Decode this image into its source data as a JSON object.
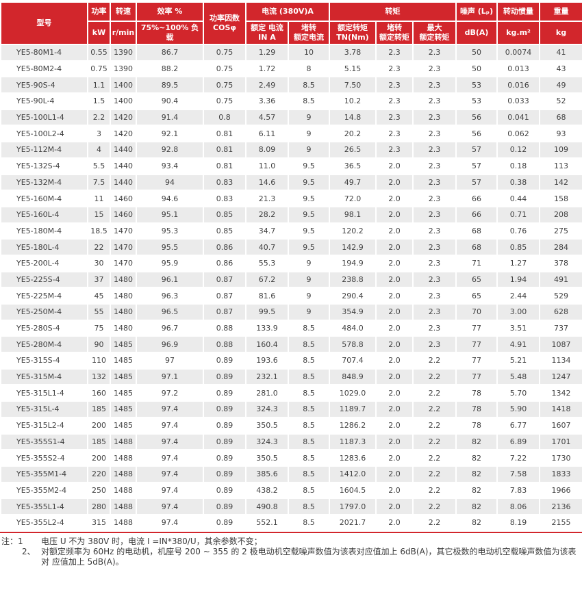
{
  "colors": {
    "header_red": "#d2262c",
    "row_gray": "#ebebeb",
    "text_dark": "#404040"
  },
  "table": {
    "header": {
      "model": "型号",
      "power": "功率",
      "power_unit": "kW",
      "speed": "转速",
      "speed_unit": "r/min",
      "efficiency": "效率 %",
      "efficiency_unit": "75%~100% 负载",
      "power_factor": "功率因数\nCOSφ",
      "current_group": "电流 (380V)A",
      "rated_current": "额定 电流\nIN A",
      "locked_current": "堵转\n额定电流",
      "torque_group": "转矩",
      "rated_torque": "额定转矩\nTN(Nm)",
      "locked_torque": "堵转\n额定转矩",
      "max_torque": "最大\n额定转矩",
      "noise": "噪声 (Lₚ)",
      "noise_unit": "dB(A)",
      "inertia": "转动惯量",
      "inertia_unit": "kg.m²",
      "weight": "重量",
      "weight_unit": "kg"
    },
    "columns": [
      "model",
      "power_kw",
      "speed_rpm",
      "efficiency_pct",
      "power_factor",
      "rated_current_a",
      "locked_rotor_current",
      "rated_torque_nm",
      "locked_rotor_torque",
      "max_torque",
      "noise_dba",
      "inertia_kgm2",
      "weight_kg"
    ],
    "rows": [
      [
        "YE5-80M1-4",
        "0.55",
        "1390",
        "86.7",
        "0.75",
        "1.29",
        "10",
        "3.78",
        "2.3",
        "2.3",
        "50",
        "0.0074",
        "41"
      ],
      [
        "YE5-80M2-4",
        "0.75",
        "1390",
        "88.2",
        "0.75",
        "1.72",
        "8",
        "5.15",
        "2.3",
        "2.3",
        "50",
        "0.013",
        "43"
      ],
      [
        "YE5-90S-4",
        "1.1",
        "1400",
        "89.5",
        "0.75",
        "2.49",
        "8.5",
        "7.50",
        "2.3",
        "2.3",
        "53",
        "0.016",
        "49"
      ],
      [
        "YE5-90L-4",
        "1.5",
        "1400",
        "90.4",
        "0.75",
        "3.36",
        "8.5",
        "10.2",
        "2.3",
        "2.3",
        "53",
        "0.033",
        "52"
      ],
      [
        "YE5-100L1-4",
        "2.2",
        "1420",
        "91.4",
        "0.8",
        "4.57",
        "9",
        "14.8",
        "2.3",
        "2.3",
        "56",
        "0.041",
        "68"
      ],
      [
        "YE5-100L2-4",
        "3",
        "1420",
        "92.1",
        "0.81",
        "6.11",
        "9",
        "20.2",
        "2.3",
        "2.3",
        "56",
        "0.062",
        "93"
      ],
      [
        "YE5-112M-4",
        "4",
        "1440",
        "92.8",
        "0.81",
        "8.09",
        "9",
        "26.5",
        "2.3",
        "2.3",
        "57",
        "0.12",
        "109"
      ],
      [
        "YE5-132S-4",
        "5.5",
        "1440",
        "93.4",
        "0.81",
        "11.0",
        "9.5",
        "36.5",
        "2.0",
        "2.3",
        "57",
        "0.18",
        "113"
      ],
      [
        "YE5-132M-4",
        "7.5",
        "1440",
        "94",
        "0.83",
        "14.6",
        "9.5",
        "49.7",
        "2.0",
        "2.3",
        "57",
        "0.38",
        "142"
      ],
      [
        "YE5-160M-4",
        "11",
        "1460",
        "94.6",
        "0.83",
        "21.3",
        "9.5",
        "72.0",
        "2.0",
        "2.3",
        "66",
        "0.44",
        "158"
      ],
      [
        "YE5-160L-4",
        "15",
        "1460",
        "95.1",
        "0.85",
        "28.2",
        "9.5",
        "98.1",
        "2.0",
        "2.3",
        "66",
        "0.71",
        "208"
      ],
      [
        "YE5-180M-4",
        "18.5",
        "1470",
        "95.3",
        "0.85",
        "34.7",
        "9.5",
        "120.2",
        "2.0",
        "2.3",
        "68",
        "0.76",
        "275"
      ],
      [
        "YE5-180L-4",
        "22",
        "1470",
        "95.5",
        "0.86",
        "40.7",
        "9.5",
        "142.9",
        "2.0",
        "2.3",
        "68",
        "0.85",
        "284"
      ],
      [
        "YE5-200L-4",
        "30",
        "1470",
        "95.9",
        "0.86",
        "55.3",
        "9",
        "194.9",
        "2.0",
        "2.3",
        "71",
        "1.27",
        "378"
      ],
      [
        "YE5-225S-4",
        "37",
        "1480",
        "96.1",
        "0.87",
        "67.2",
        "9",
        "238.8",
        "2.0",
        "2.3",
        "65",
        "1.94",
        "491"
      ],
      [
        "YE5-225M-4",
        "45",
        "1480",
        "96.3",
        "0.87",
        "81.6",
        "9",
        "290.4",
        "2.0",
        "2.3",
        "65",
        "2.44",
        "529"
      ],
      [
        "YE5-250M-4",
        "55",
        "1480",
        "96.5",
        "0.87",
        "99.5",
        "9",
        "354.9",
        "2.0",
        "2.3",
        "70",
        "3.00",
        "628"
      ],
      [
        "YE5-280S-4",
        "75",
        "1480",
        "96.7",
        "0.88",
        "133.9",
        "8.5",
        "484.0",
        "2.0",
        "2.3",
        "77",
        "3.51",
        "737"
      ],
      [
        "YE5-280M-4",
        "90",
        "1485",
        "96.9",
        "0.88",
        "160.4",
        "8.5",
        "578.8",
        "2.0",
        "2.3",
        "77",
        "4.91",
        "1087"
      ],
      [
        "YE5-315S-4",
        "110",
        "1485",
        "97",
        "0.89",
        "193.6",
        "8.5",
        "707.4",
        "2.0",
        "2.2",
        "77",
        "5.21",
        "1134"
      ],
      [
        "YE5-315M-4",
        "132",
        "1485",
        "97.1",
        "0.89",
        "232.1",
        "8.5",
        "848.9",
        "2.0",
        "2.2",
        "77",
        "5.48",
        "1247"
      ],
      [
        "YE5-315L1-4",
        "160",
        "1485",
        "97.2",
        "0.89",
        "281.0",
        "8.5",
        "1029.0",
        "2.0",
        "2.2",
        "78",
        "5.70",
        "1342"
      ],
      [
        "YE5-315L-4",
        "185",
        "1485",
        "97.4",
        "0.89",
        "324.3",
        "8.5",
        "1189.7",
        "2.0",
        "2.2",
        "78",
        "5.90",
        "1418"
      ],
      [
        "YE5-315L2-4",
        "200",
        "1485",
        "97.4",
        "0.89",
        "350.5",
        "8.5",
        "1286.2",
        "2.0",
        "2.2",
        "78",
        "6.77",
        "1607"
      ],
      [
        "YE5-355S1-4",
        "185",
        "1488",
        "97.4",
        "0.89",
        "324.3",
        "8.5",
        "1187.3",
        "2.0",
        "2.2",
        "82",
        "6.89",
        "1701"
      ],
      [
        "YE5-355S2-4",
        "200",
        "1488",
        "97.4",
        "0.89",
        "350.5",
        "8.5",
        "1283.6",
        "2.0",
        "2.2",
        "82",
        "7.22",
        "1730"
      ],
      [
        "YE5-355M1-4",
        "220",
        "1488",
        "97.4",
        "0.89",
        "385.6",
        "8.5",
        "1412.0",
        "2.0",
        "2.2",
        "82",
        "7.58",
        "1833"
      ],
      [
        "YE5-355M2-4",
        "250",
        "1488",
        "97.4",
        "0.89",
        "438.2",
        "8.5",
        "1604.5",
        "2.0",
        "2.2",
        "82",
        "7.83",
        "1966"
      ],
      [
        "YE5-355L1-4",
        "280",
        "1488",
        "97.4",
        "0.89",
        "490.8",
        "8.5",
        "1797.0",
        "2.0",
        "2.2",
        "82",
        "8.06",
        "2136"
      ],
      [
        "YE5-355L2-4",
        "315",
        "1488",
        "97.4",
        "0.89",
        "552.1",
        "8.5",
        "2021.7",
        "2.0",
        "2.2",
        "82",
        "8.19",
        "2155"
      ]
    ]
  },
  "notes": {
    "note1_label": "注：1",
    "note1_text": "电压 U 不为 380V 时，电流 I =IN*380/U，其余参数不变；",
    "note2_label": "2、",
    "note2_text": "对额定频率为 60Hz 的电动机，机座号 200 ~ 355 的 2 极电动机空载噪声数值为该表对应值加上 6dB(A)，其它极数的电动机空载噪声数值为该表对 应值加上 5dB(A)。"
  }
}
